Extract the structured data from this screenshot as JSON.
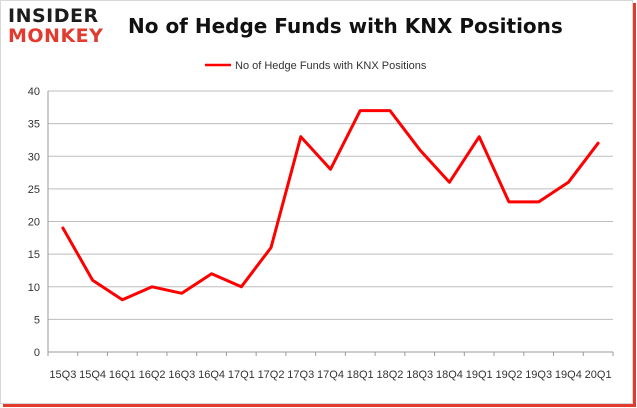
{
  "logo": {
    "line1": "INSIDER",
    "line2": "MONKEY"
  },
  "colors": {
    "series": "#ff0000",
    "accent": "#e23a2f"
  },
  "chart_data": {
    "type": "line",
    "title": "No of Hedge Funds with KNX Positions",
    "xlabel": "",
    "ylabel": "",
    "ylim": [
      0,
      40
    ],
    "yticks": [
      0,
      5,
      10,
      15,
      20,
      25,
      30,
      35,
      40
    ],
    "grid": true,
    "legend": "top-center",
    "x": [
      "15Q3",
      "15Q4",
      "16Q1",
      "16Q2",
      "16Q3",
      "16Q4",
      "17Q1",
      "17Q2",
      "17Q3",
      "17Q4",
      "18Q1",
      "18Q2",
      "18Q3",
      "18Q4",
      "19Q1",
      "19Q2",
      "19Q3",
      "19Q4",
      "20Q1"
    ],
    "series": [
      {
        "name": "No of Hedge Funds with KNX Positions",
        "values": [
          19,
          11,
          8,
          10,
          9,
          12,
          10,
          16,
          33,
          28,
          37,
          37,
          31,
          26,
          33,
          23,
          23,
          26,
          32
        ]
      }
    ]
  }
}
